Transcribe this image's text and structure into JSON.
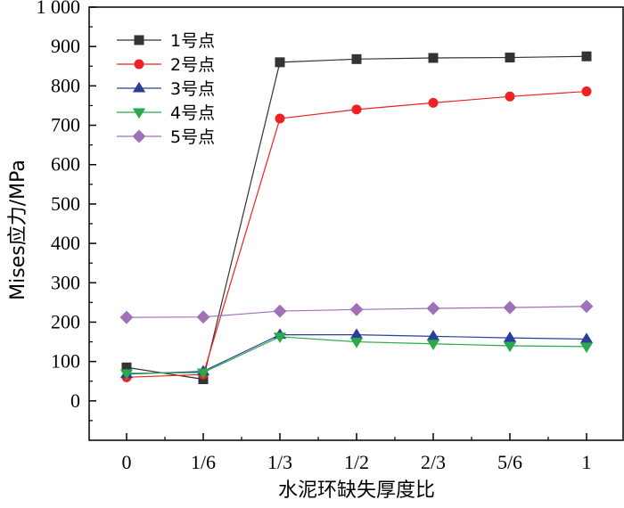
{
  "chart_data": {
    "type": "line",
    "x_categories": [
      "0",
      "1/6",
      "1/3",
      "1/2",
      "2/3",
      "5/6",
      "1"
    ],
    "xlabel": "水泥环缺失厚度比",
    "ylabel": "Mises应力/MPa",
    "ylim": [
      -100,
      1000
    ],
    "y_ticks": [
      0,
      100,
      200,
      300,
      400,
      500,
      600,
      700,
      800,
      900,
      1000
    ],
    "y_tick_labels": [
      "0",
      "100",
      "200",
      "300",
      "400",
      "500",
      "600",
      "700",
      "800",
      "900",
      "1 000"
    ],
    "grid": false,
    "legend_position": "top-left",
    "series": [
      {
        "name": "1号点",
        "color": "#333333",
        "marker": "square",
        "values": [
          85,
          55,
          860,
          868,
          871,
          872,
          875
        ]
      },
      {
        "name": "2号点",
        "color": "#ee2222",
        "marker": "circle",
        "values": [
          60,
          67,
          717,
          740,
          757,
          773,
          786
        ]
      },
      {
        "name": "3号点",
        "color": "#2a3f9a",
        "marker": "triangle-up",
        "values": [
          68,
          75,
          168,
          168,
          164,
          160,
          157
        ]
      },
      {
        "name": "4号点",
        "color": "#2aa84a",
        "marker": "triangle-down",
        "values": [
          70,
          72,
          163,
          150,
          145,
          140,
          138
        ]
      },
      {
        "name": "5号点",
        "color": "#a070b8",
        "marker": "diamond",
        "values": [
          212,
          213,
          228,
          232,
          235,
          237,
          240
        ]
      }
    ]
  }
}
